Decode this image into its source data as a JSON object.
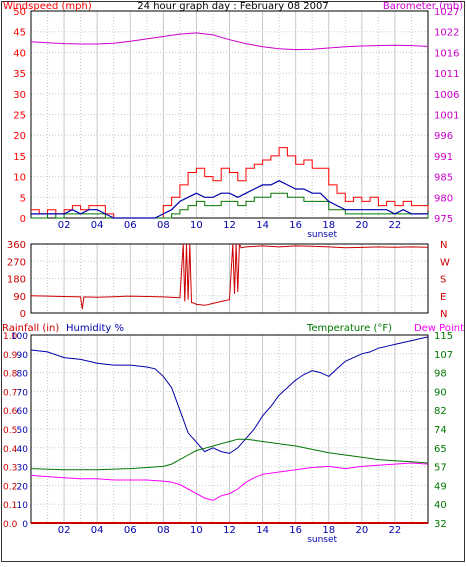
{
  "colors": {
    "wind": "#ff0000",
    "gust": "#ff0000",
    "baro": "#cc00cc",
    "direction": "#cc0000",
    "humidity": "#0000aa",
    "temperature": "#007700",
    "dewpoint": "#ff00ff",
    "rain": "#cc0000",
    "grid": "#c8c8c8",
    "frame": "#000000"
  },
  "chart_data": [
    {
      "type": "line",
      "title": "24 hour graph day : February 08 2007",
      "ylabel_left": "Windspeed (mph)",
      "ylabel_right": "Barometer (mb)",
      "x_ticks": [
        "02",
        "04",
        "06",
        "08",
        "10",
        "12",
        "14",
        "16",
        "18",
        "20",
        "22"
      ],
      "sunset_label": "sunset",
      "y_left_ticks": [
        "0",
        "5",
        "10",
        "15",
        "20",
        "25",
        "30",
        "35",
        "40",
        "45",
        "50"
      ],
      "y_right_ticks": [
        "975",
        "980",
        "985",
        "991",
        "996",
        "1001",
        "1006",
        "1011",
        "1016",
        "1022",
        "1027"
      ],
      "ylim_left": [
        0,
        50
      ],
      "ylim_right": [
        975,
        1027
      ],
      "grid": true,
      "series": [
        {
          "role": "barometer",
          "axis": "right",
          "x": [
            0,
            1,
            2,
            3,
            4,
            5,
            6,
            7,
            8,
            9,
            10,
            11,
            12,
            13,
            14,
            15,
            16,
            17,
            18,
            19,
            20,
            21,
            22,
            23,
            24
          ],
          "values": [
            1019.3,
            1019,
            1018.8,
            1018.7,
            1018.7,
            1018.9,
            1019.4,
            1020,
            1020.6,
            1021.2,
            1021.5,
            1021,
            1019.8,
            1018.8,
            1018,
            1017.5,
            1017.3,
            1017.4,
            1017.7,
            1018,
            1018.2,
            1018.3,
            1018.4,
            1018.3,
            1018.1
          ]
        },
        {
          "role": "wind gust",
          "axis": "left",
          "x": [
            0,
            0.5,
            1,
            1.5,
            2,
            2.5,
            3,
            3.5,
            4,
            4.5,
            5,
            5.5,
            6,
            6.5,
            7,
            7.5,
            8,
            8.5,
            9,
            9.5,
            10,
            10.5,
            11,
            11.5,
            12,
            12.5,
            13,
            13.5,
            14,
            14.5,
            15,
            15.5,
            16,
            16.5,
            17,
            17.5,
            18,
            18.5,
            19,
            19.5,
            20,
            20.5,
            21,
            21.5,
            22,
            22.5,
            23,
            23.5,
            24
          ],
          "values": [
            2,
            1,
            2,
            1,
            2,
            3,
            2,
            3,
            3,
            1,
            0,
            0,
            0,
            0,
            0,
            0,
            3,
            5,
            8,
            11,
            12,
            10,
            9,
            12,
            11,
            9,
            12,
            13,
            14,
            15,
            17,
            15,
            13,
            14,
            12,
            12,
            8,
            6,
            4,
            5,
            4,
            5,
            3,
            4,
            3,
            4,
            3,
            3,
            2
          ]
        },
        {
          "role": "wind average",
          "axis": "left",
          "x": [
            0,
            0.5,
            1,
            1.5,
            2,
            2.5,
            3,
            3.5,
            4,
            4.5,
            5,
            5.5,
            6,
            6.5,
            7,
            7.5,
            8,
            8.5,
            9,
            9.5,
            10,
            10.5,
            11,
            11.5,
            12,
            12.5,
            13,
            13.5,
            14,
            14.5,
            15,
            15.5,
            16,
            16.5,
            17,
            17.5,
            18,
            18.5,
            19,
            19.5,
            20,
            20.5,
            21,
            21.5,
            22,
            22.5,
            23,
            23.5,
            24
          ],
          "values": [
            1,
            1,
            1,
            1,
            1,
            2,
            1,
            2,
            2,
            1,
            0,
            0,
            0,
            0,
            0,
            0,
            1,
            2,
            4,
            5,
            6,
            5,
            5,
            6,
            6,
            5,
            6,
            7,
            8,
            8,
            9,
            8,
            7,
            7,
            6,
            6,
            4,
            3,
            2,
            2,
            2,
            2,
            2,
            2,
            1,
            2,
            1,
            1,
            1
          ]
        },
        {
          "role": "wind low",
          "axis": "left",
          "x": [
            0,
            0.5,
            1,
            1.5,
            2,
            2.5,
            3,
            3.5,
            4,
            4.5,
            5,
            5.5,
            6,
            6.5,
            7,
            7.5,
            8,
            8.5,
            9,
            9.5,
            10,
            10.5,
            11,
            11.5,
            12,
            12.5,
            13,
            13.5,
            14,
            14.5,
            15,
            15.5,
            16,
            16.5,
            17,
            17.5,
            18,
            18.5,
            19,
            19.5,
            20,
            20.5,
            21,
            21.5,
            22,
            22.5,
            23,
            23.5,
            24
          ],
          "values": [
            0,
            0,
            1,
            0,
            1,
            1,
            1,
            1,
            1,
            0,
            0,
            0,
            0,
            0,
            0,
            0,
            0,
            1,
            2,
            3,
            4,
            3,
            3,
            4,
            4,
            3,
            4,
            5,
            5,
            6,
            6,
            5,
            5,
            4,
            4,
            4,
            2,
            2,
            1,
            1,
            1,
            1,
            1,
            1,
            1,
            1,
            1,
            1,
            0
          ]
        }
      ]
    },
    {
      "type": "line",
      "ylabel_left": "",
      "y_left_ticks": [
        "0",
        "90",
        "180",
        "270",
        "360"
      ],
      "y_right_ticks": [
        "N",
        "E",
        "S",
        "W",
        "N"
      ],
      "ylim_left": [
        0,
        360
      ],
      "grid": true,
      "series": [
        {
          "role": "wind direction",
          "axis": "left",
          "x": [
            0,
            1,
            2,
            3,
            3.1,
            3.2,
            4,
            5,
            6,
            7,
            8,
            9,
            9.2,
            9.3,
            9.4,
            9.5,
            9.6,
            9.7,
            9.9,
            10,
            10.5,
            11,
            11.5,
            12,
            12.2,
            12.3,
            12.4,
            12.5,
            12.6,
            12.7,
            13,
            14,
            15,
            16,
            17,
            18,
            19,
            20,
            21,
            22,
            23,
            24
          ],
          "values": [
            90,
            88,
            86,
            84,
            20,
            84,
            82,
            85,
            88,
            86,
            84,
            80,
            360,
            60,
            360,
            70,
            360,
            55,
            50,
            45,
            40,
            50,
            60,
            70,
            360,
            100,
            360,
            110,
            360,
            340,
            345,
            350,
            345,
            350,
            348,
            345,
            340,
            342,
            345,
            343,
            345,
            343
          ]
        }
      ]
    },
    {
      "type": "line",
      "ylabel_rain": "Rainfall (in)",
      "ylabel_humidity": "Humidity %",
      "ylabel_temperature": "Temperature (°F)",
      "ylabel_dewpoint": "Dew Point",
      "x_ticks": [
        "02",
        "04",
        "06",
        "08",
        "10",
        "12",
        "14",
        "16",
        "18",
        "20",
        "22"
      ],
      "sunset_label": "sunset",
      "y_rain_ticks": [
        "0.0",
        "0.1",
        "0.2",
        "0.3",
        "0.4",
        "0.5",
        "0.6",
        "0.7",
        "0.8",
        "0.9",
        "1.0",
        "1.1"
      ],
      "y_humidity_ticks": [
        "0",
        "10",
        "20",
        "30",
        "40",
        "50",
        "60",
        "70",
        "80",
        "90",
        "100"
      ],
      "y_temp_ticks": [
        "32",
        "40",
        "49",
        "57",
        "65",
        "74",
        "82",
        "90",
        "98",
        "107",
        "115"
      ],
      "ylim_humidity": [
        0,
        100
      ],
      "ylim_temperature": [
        32,
        115
      ],
      "grid": true,
      "series": [
        {
          "role": "humidity",
          "axis": "humidity",
          "x": [
            0,
            1,
            2,
            3,
            4,
            5,
            6,
            7,
            7.5,
            8,
            8.5,
            9,
            9.5,
            10,
            10.5,
            11,
            11.5,
            12,
            12.5,
            13,
            13.5,
            14,
            14.5,
            15,
            15.5,
            16,
            16.5,
            17,
            17.5,
            18,
            18.5,
            19,
            19.5,
            20,
            20.5,
            21,
            21.5,
            22,
            22.5,
            23,
            23.5,
            24
          ],
          "values": [
            92,
            91,
            88,
            87,
            85,
            84,
            84,
            83,
            82,
            78,
            72,
            60,
            48,
            43,
            38,
            40,
            38,
            37,
            40,
            45,
            50,
            57,
            62,
            68,
            72,
            76,
            79,
            81,
            80,
            78,
            82,
            86,
            88,
            90,
            91,
            93,
            94,
            95,
            96,
            97,
            98,
            99
          ]
        },
        {
          "role": "temperature",
          "axis": "temperature",
          "x": [
            0,
            2,
            4,
            6,
            7,
            8,
            8.5,
            9,
            9.5,
            10,
            10.5,
            11,
            11.5,
            12,
            12.5,
            13,
            13.5,
            14,
            15,
            16,
            17,
            18,
            19,
            20,
            21,
            22,
            23,
            24
          ],
          "values": [
            56,
            55.5,
            55.5,
            56,
            56.5,
            57,
            58,
            60,
            62,
            64,
            65,
            66,
            67,
            68,
            69,
            69,
            68.5,
            68,
            67,
            66,
            64.5,
            63,
            62,
            61,
            60,
            59.5,
            59,
            58.5
          ]
        },
        {
          "role": "dew point",
          "axis": "temperature",
          "x": [
            0,
            1,
            2,
            3,
            4,
            5,
            6,
            7,
            8,
            8.5,
            9,
            9.5,
            10,
            10.5,
            11,
            11.5,
            12,
            12.5,
            13,
            13.5,
            14,
            15,
            16,
            17,
            18,
            19,
            20,
            21,
            22,
            23,
            24
          ],
          "values": [
            53,
            52.5,
            52,
            51.5,
            51.5,
            51,
            51,
            51,
            50.5,
            50,
            49,
            47,
            45,
            43,
            42,
            44,
            45,
            47,
            50,
            52,
            53.5,
            54.5,
            55.5,
            56.5,
            57,
            56,
            57,
            57.5,
            58,
            58.5,
            58
          ]
        },
        {
          "role": "rainfall",
          "axis": "rain",
          "x": [
            0,
            24
          ],
          "values": [
            0,
            0
          ]
        }
      ]
    }
  ]
}
